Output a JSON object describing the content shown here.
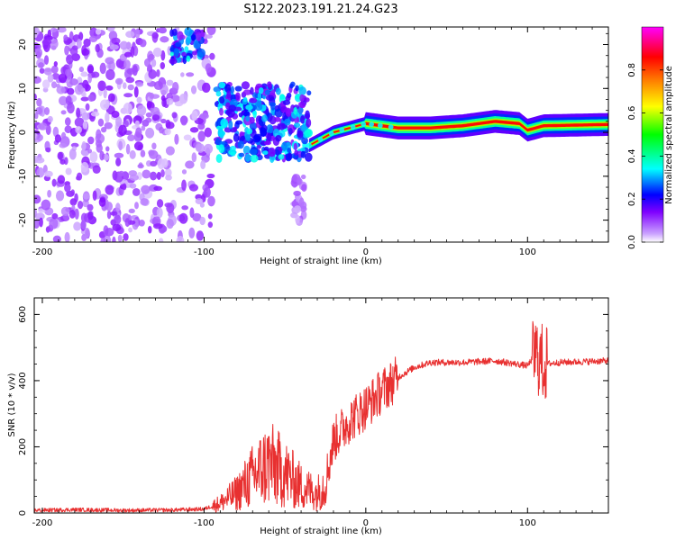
{
  "figure_title": "S122.2023.191.21.24.G23",
  "chart_data": [
    {
      "type": "heatmap",
      "title": "",
      "xlabel": "Height of straight line (km)",
      "ylabel": "Frequency (Hz)",
      "xlim": [
        -205,
        150
      ],
      "ylim": [
        -25,
        24
      ],
      "xticks": [
        -200,
        -100,
        0,
        100
      ],
      "yticks": [
        -20,
        -10,
        0,
        10,
        20
      ],
      "colorbar": {
        "label": "Normalized spectral amplitude",
        "range": [
          0.0,
          1.0
        ],
        "ticks": [
          0.0,
          0.2,
          0.4,
          0.6,
          0.8
        ],
        "tick_labels": [
          "0.0",
          "0.2",
          "0.4",
          "0.6",
          "0.8"
        ],
        "colormap": [
          "#ffffff",
          "#7f00ff",
          "#0000ff",
          "#00ffff",
          "#00ff00",
          "#ffff00",
          "#ff7f00",
          "#ff0000",
          "#ff00ff"
        ]
      },
      "features": [
        {
          "kind": "noise",
          "x_range": [
            -205,
            -95
          ],
          "y_range": [
            -25,
            24
          ],
          "amplitude": 0.12
        },
        {
          "kind": "blob",
          "x_range": [
            -120,
            -100
          ],
          "y_range": [
            16,
            23
          ],
          "amplitude": 0.3
        },
        {
          "kind": "blob",
          "x_range": [
            -92,
            -35
          ],
          "y_range": [
            -6,
            11
          ],
          "amplitude": 0.3
        },
        {
          "kind": "blob",
          "x_range": [
            -45,
            -38
          ],
          "y_range": [
            -21,
            -10
          ],
          "amplitude": 0.08
        },
        {
          "kind": "ridge",
          "points": [
            [
              -35,
              -3
            ],
            [
              -20,
              0
            ],
            [
              0,
              2
            ],
            [
              20,
              1
            ],
            [
              40,
              1
            ],
            [
              60,
              1.5
            ],
            [
              80,
              2.5
            ],
            [
              95,
              2
            ],
            [
              100,
              0.5
            ],
            [
              110,
              1.5
            ],
            [
              150,
              1.8
            ]
          ],
          "amplitude": 0.85
        }
      ]
    },
    {
      "type": "line",
      "title": "",
      "xlabel": "Height of straight line (km)",
      "ylabel": "SNR (10 * v/v)",
      "xlim": [
        -205,
        150
      ],
      "ylim": [
        0,
        650
      ],
      "xticks": [
        -200,
        -100,
        0,
        100
      ],
      "yticks": [
        0,
        200,
        400,
        600
      ],
      "series": [
        {
          "color": "#e83030",
          "x": [
            -205,
            -180,
            -150,
            -120,
            -100,
            -90,
            -80,
            -70,
            -60,
            -50,
            -40,
            -30,
            -25,
            -20,
            -10,
            0,
            10,
            20,
            30,
            40,
            60,
            80,
            100,
            105,
            110,
            120,
            150
          ],
          "y": [
            8,
            10,
            8,
            9,
            12,
            30,
            60,
            110,
            150,
            120,
            80,
            60,
            90,
            220,
            280,
            320,
            370,
            410,
            440,
            455,
            455,
            460,
            445,
            480,
            450,
            455,
            460
          ]
        }
      ]
    }
  ]
}
